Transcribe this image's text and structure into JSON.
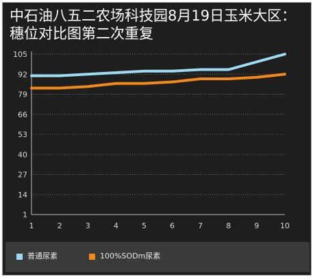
{
  "chart_data": {
    "type": "line",
    "title": "中石油八五二农场科技园8月19日玉米大区：穗位对比图第二次重复",
    "xlabel": "",
    "ylabel": "",
    "categories": [
      "1",
      "2",
      "3",
      "4",
      "5",
      "6",
      "7",
      "8",
      "9",
      "10"
    ],
    "y_ticks": [
      1,
      14,
      27,
      40,
      53,
      66,
      79,
      92,
      105
    ],
    "ylim": [
      1,
      105
    ],
    "grid": true,
    "legend_position": "bottom",
    "series": [
      {
        "name": "普通尿素",
        "color": "#9ddcf2",
        "values": [
          91,
          91,
          92,
          93,
          94,
          94,
          95,
          95,
          100,
          105
        ]
      },
      {
        "name": "100%SODm尿素",
        "color": "#f28a1a",
        "values": [
          83,
          83,
          84,
          86,
          86,
          87,
          89,
          89,
          90,
          92
        ]
      }
    ]
  }
}
